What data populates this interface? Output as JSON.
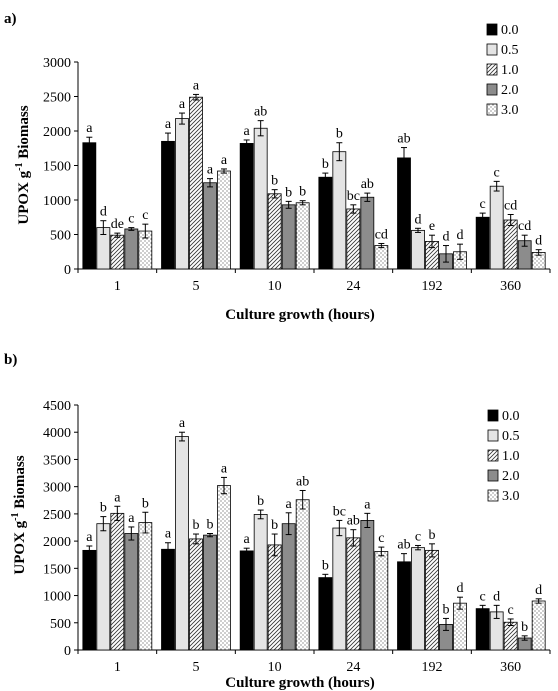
{
  "chart_data": [
    {
      "type": "bar",
      "panel_label": "a)",
      "categories": [
        "1",
        "5",
        "10",
        "24",
        "192",
        "360"
      ],
      "xlabel": "Culture growth (hours)",
      "ylabel": "UPOX g-1 Biomass",
      "ylabel_parts": {
        "base": "UPOX g",
        "sup": "-1",
        "tail": " Biomass"
      },
      "ylim": [
        0,
        3000
      ],
      "yticks": [
        0,
        500,
        1000,
        1500,
        2000,
        2500,
        3000
      ],
      "legend_position": "top-right",
      "series": [
        {
          "name": "0.0",
          "pattern": "black",
          "values": [
            1830,
            1850,
            1820,
            1330,
            1610,
            750
          ],
          "errors": [
            80,
            120,
            50,
            60,
            150,
            60
          ],
          "letters": [
            "a",
            "a",
            "a",
            "b",
            "ab",
            "c"
          ]
        },
        {
          "name": "0.5",
          "pattern": "light",
          "values": [
            600,
            2180,
            2040,
            1700,
            560,
            1200
          ],
          "errors": [
            100,
            80,
            110,
            130,
            30,
            70
          ],
          "letters": [
            "d",
            "a",
            "ab",
            "b",
            "d",
            "c"
          ]
        },
        {
          "name": "1.0",
          "pattern": "hatch",
          "values": [
            490,
            2490,
            1090,
            870,
            400,
            710
          ],
          "errors": [
            30,
            40,
            60,
            60,
            90,
            80
          ],
          "letters": [
            "de",
            "a",
            "b",
            "bc",
            "e",
            "cd"
          ]
        },
        {
          "name": "2.0",
          "pattern": "gray",
          "values": [
            580,
            1250,
            930,
            1040,
            220,
            410
          ],
          "errors": [
            20,
            60,
            50,
            60,
            120,
            80
          ],
          "letters": [
            "c",
            "a",
            "b",
            "ab",
            "d",
            "cd"
          ]
        },
        {
          "name": "3.0",
          "pattern": "dots",
          "values": [
            550,
            1420,
            960,
            340,
            250,
            240
          ],
          "errors": [
            100,
            30,
            30,
            30,
            110,
            40
          ],
          "letters": [
            "c",
            "a",
            "b",
            "cd",
            "d",
            "d"
          ]
        }
      ]
    },
    {
      "type": "bar",
      "panel_label": "b)",
      "categories": [
        "1",
        "5",
        "10",
        "24",
        "192",
        "360"
      ],
      "xlabel": "Culture growth (hours)",
      "ylabel": "UPOX g-1 Biomass",
      "ylabel_parts": {
        "base": "UPOX g",
        "sup": "-1",
        "tail": " Biomass"
      },
      "ylim": [
        0,
        4500
      ],
      "yticks": [
        0,
        500,
        1000,
        1500,
        2000,
        2500,
        3000,
        3500,
        4000,
        4500
      ],
      "legend_position": "top-right",
      "series": [
        {
          "name": "0.0",
          "pattern": "black",
          "values": [
            1830,
            1850,
            1820,
            1330,
            1620,
            760
          ],
          "errors": [
            80,
            120,
            50,
            60,
            150,
            60
          ],
          "letters": [
            "a",
            "a",
            "a",
            "b",
            "ab",
            "c"
          ]
        },
        {
          "name": "0.5",
          "pattern": "light",
          "values": [
            2320,
            3920,
            2490,
            2240,
            1880,
            700
          ],
          "errors": [
            130,
            80,
            80,
            140,
            40,
            120
          ],
          "letters": [
            "b",
            "a",
            "b",
            "bc",
            "c",
            "d"
          ]
        },
        {
          "name": "1.0",
          "pattern": "hatch",
          "values": [
            2510,
            2040,
            1930,
            2060,
            1830,
            510
          ],
          "errors": [
            130,
            90,
            200,
            150,
            120,
            60
          ],
          "letters": [
            "a",
            "b",
            "b",
            "ab",
            "b",
            "c"
          ]
        },
        {
          "name": "2.0",
          "pattern": "gray",
          "values": [
            2140,
            2110,
            2320,
            2380,
            470,
            220
          ],
          "errors": [
            120,
            30,
            200,
            130,
            110,
            40
          ],
          "letters": [
            "a",
            "b",
            "a",
            "a",
            "b",
            "b"
          ]
        },
        {
          "name": "3.0",
          "pattern": "dots",
          "values": [
            2340,
            3020,
            2760,
            1810,
            860,
            900
          ],
          "errors": [
            190,
            150,
            170,
            80,
            110,
            40
          ],
          "letters": [
            "b",
            "a",
            "ab",
            "c",
            "d",
            "d"
          ]
        }
      ]
    }
  ]
}
